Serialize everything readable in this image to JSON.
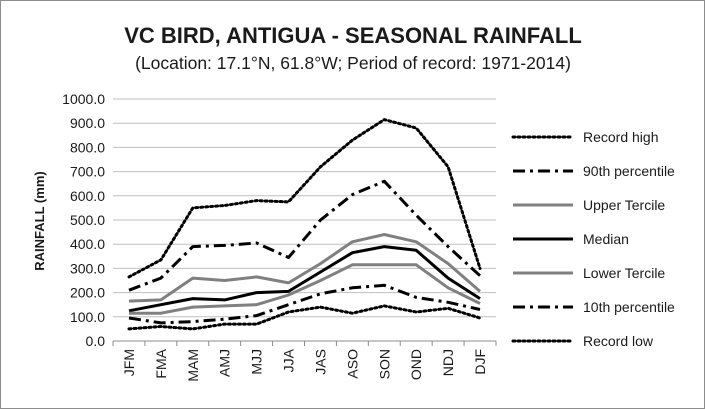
{
  "chart_data": {
    "type": "line",
    "title": "VC BIRD, ANTIGUA - SEASONAL RAINFALL",
    "subtitle": "(Location: 17.1°N, 61.8°W; Period of record: 1971-2014)",
    "xlabel": "",
    "ylabel": "RAINFALL (mm)",
    "ylim": [
      0,
      1000
    ],
    "ytick_step": 100,
    "ytick_labels": [
      "0.0",
      "100.0",
      "200.0",
      "300.0",
      "400.0",
      "500.0",
      "600.0",
      "700.0",
      "800.0",
      "900.0",
      "1000.0"
    ],
    "grid": true,
    "legend_position": "right",
    "categories": [
      "JFM",
      "FMA",
      "MAM",
      "AMJ",
      "MJJ",
      "JJA",
      "JAS",
      "ASO",
      "SON",
      "OND",
      "NDJ",
      "DJF"
    ],
    "series": [
      {
        "name": "Record high",
        "color": "#000000",
        "style": "dotted",
        "values": [
          265,
          335,
          550,
          560,
          580,
          575,
          720,
          830,
          915,
          880,
          720,
          300
        ]
      },
      {
        "name": "90th percentile",
        "color": "#000000",
        "style": "dashdot",
        "values": [
          210,
          260,
          390,
          395,
          405,
          345,
          500,
          605,
          660,
          520,
          390,
          270
        ]
      },
      {
        "name": "Upper Tercile",
        "color": "#808080",
        "style": "solid",
        "values": [
          165,
          170,
          260,
          250,
          265,
          240,
          320,
          410,
          440,
          410,
          320,
          205
        ]
      },
      {
        "name": "Median",
        "color": "#000000",
        "style": "solid",
        "values": [
          125,
          150,
          175,
          170,
          200,
          205,
          285,
          365,
          390,
          375,
          260,
          175
        ]
      },
      {
        "name": "Lower Tercile",
        "color": "#808080",
        "style": "solid",
        "values": [
          115,
          115,
          140,
          145,
          150,
          190,
          250,
          315,
          315,
          315,
          220,
          155
        ]
      },
      {
        "name": "10th percentile",
        "color": "#000000",
        "style": "dashdot",
        "values": [
          95,
          75,
          80,
          90,
          105,
          150,
          195,
          220,
          230,
          180,
          160,
          130
        ]
      },
      {
        "name": "Record low",
        "color": "#000000",
        "style": "dotted",
        "values": [
          50,
          60,
          50,
          70,
          70,
          120,
          140,
          115,
          145,
          120,
          135,
          95
        ]
      }
    ]
  }
}
